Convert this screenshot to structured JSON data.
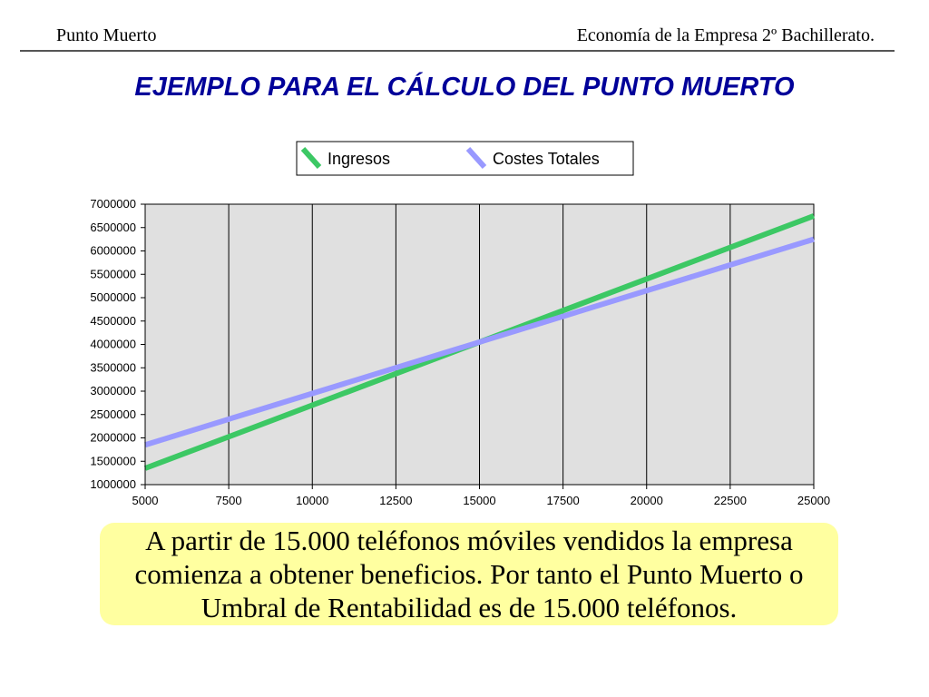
{
  "header": {
    "left": "Punto Muerto",
    "right": "Economía de la Empresa 2º Bachillerato."
  },
  "slide_title": "EJEMPLO PARA EL CÁLCULO DEL PUNTO MUERTO",
  "note": "A partir de 15.000 teléfonos móviles vendidos la empresa comienza a obtener beneficios. Por tanto el Punto Muerto o Umbral de Rentabilidad es de 15.000 teléfonos.",
  "colors": {
    "title": "#000099",
    "plot_background": "#e0e0e0",
    "note_background": "#ffffa0"
  },
  "chart_data": {
    "type": "line",
    "title": "",
    "xlabel": "",
    "ylabel": "",
    "x": [
      5000,
      25000
    ],
    "xlim": [
      5000,
      25000
    ],
    "ylim": [
      1000000,
      7000000
    ],
    "xticks": [
      5000,
      7500,
      10000,
      12500,
      15000,
      17500,
      20000,
      22500,
      25000
    ],
    "yticks": [
      1000000,
      1500000,
      2000000,
      2500000,
      3000000,
      3500000,
      4000000,
      4500000,
      5000000,
      5500000,
      6000000,
      6500000,
      7000000
    ],
    "grid": "vertical",
    "legend_position": "top",
    "series": [
      {
        "name": "Ingresos",
        "color": "#3cc864",
        "values": [
          1350000,
          6750000
        ]
      },
      {
        "name": "Costes Totales",
        "color": "#9999ff",
        "values": [
          1850000,
          6250000
        ]
      }
    ]
  }
}
